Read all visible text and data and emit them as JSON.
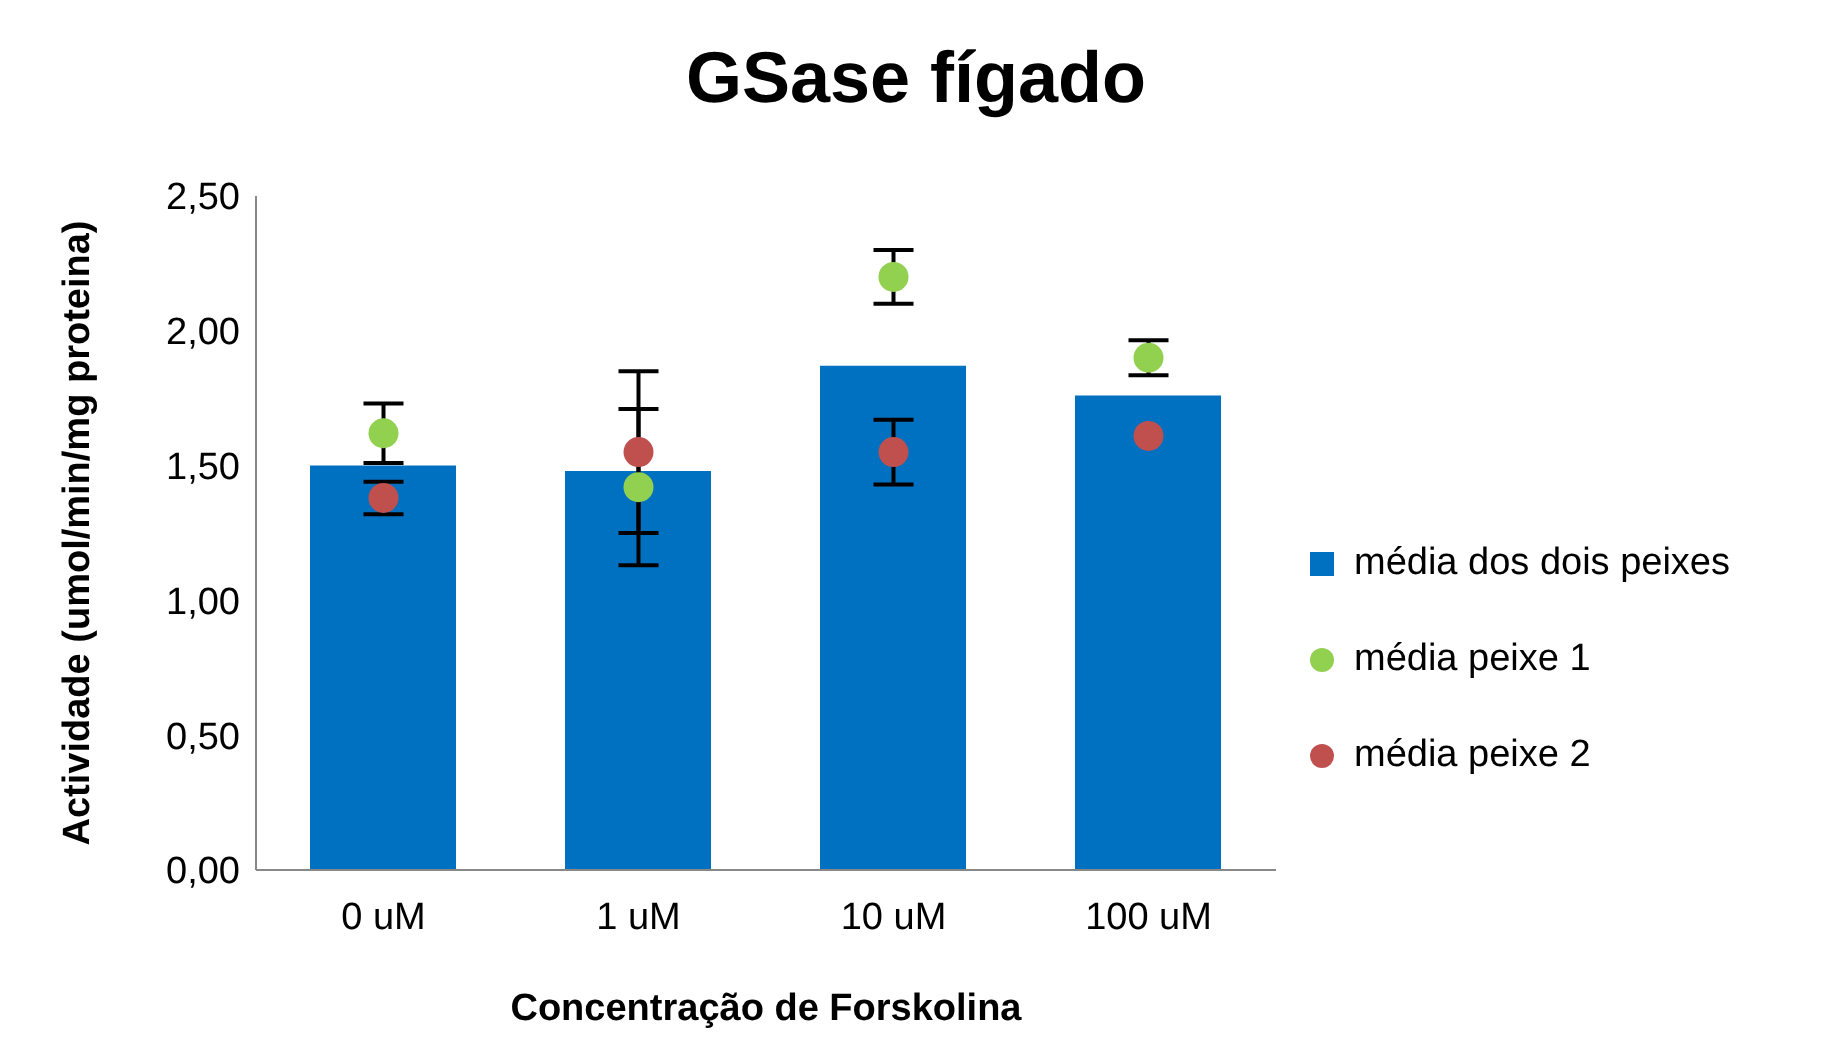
{
  "chart_data": {
    "type": "bar",
    "title": "GSase fígado",
    "xlabel": "Concentração de Forskolina",
    "ylabel": "Actividade (umol/min/mg proteina)",
    "categories": [
      "0 uM",
      "1 uM",
      "10 uM",
      "100 uM"
    ],
    "series": [
      {
        "name": "média dos dois peixes",
        "color": "#0070c0",
        "values": [
          1.5,
          1.48,
          1.87,
          1.76
        ]
      },
      {
        "name": "média peixe 1",
        "type": "scatter",
        "color": "#92d050",
        "values": [
          1.62,
          1.42,
          2.2,
          1.9
        ],
        "errors": [
          0.11,
          0.29,
          0.1,
          0.065
        ]
      },
      {
        "name": "média peixe 2",
        "type": "scatter",
        "color": "#c0504d",
        "values": [
          1.38,
          1.55,
          1.55,
          1.61
        ],
        "errors": [
          0.06,
          0.3,
          0.12,
          null
        ]
      }
    ],
    "ylim": [
      0,
      2.5
    ],
    "yticks": [
      {
        "value": 0,
        "label": "0,00"
      },
      {
        "value": 0.5,
        "label": "0,50"
      },
      {
        "value": 1,
        "label": "1,00"
      },
      {
        "value": 1.5,
        "label": "1,50"
      },
      {
        "value": 2,
        "label": "2,00"
      },
      {
        "value": 2.5,
        "label": "2,50"
      }
    ],
    "legend": "right",
    "marker": "circle"
  }
}
